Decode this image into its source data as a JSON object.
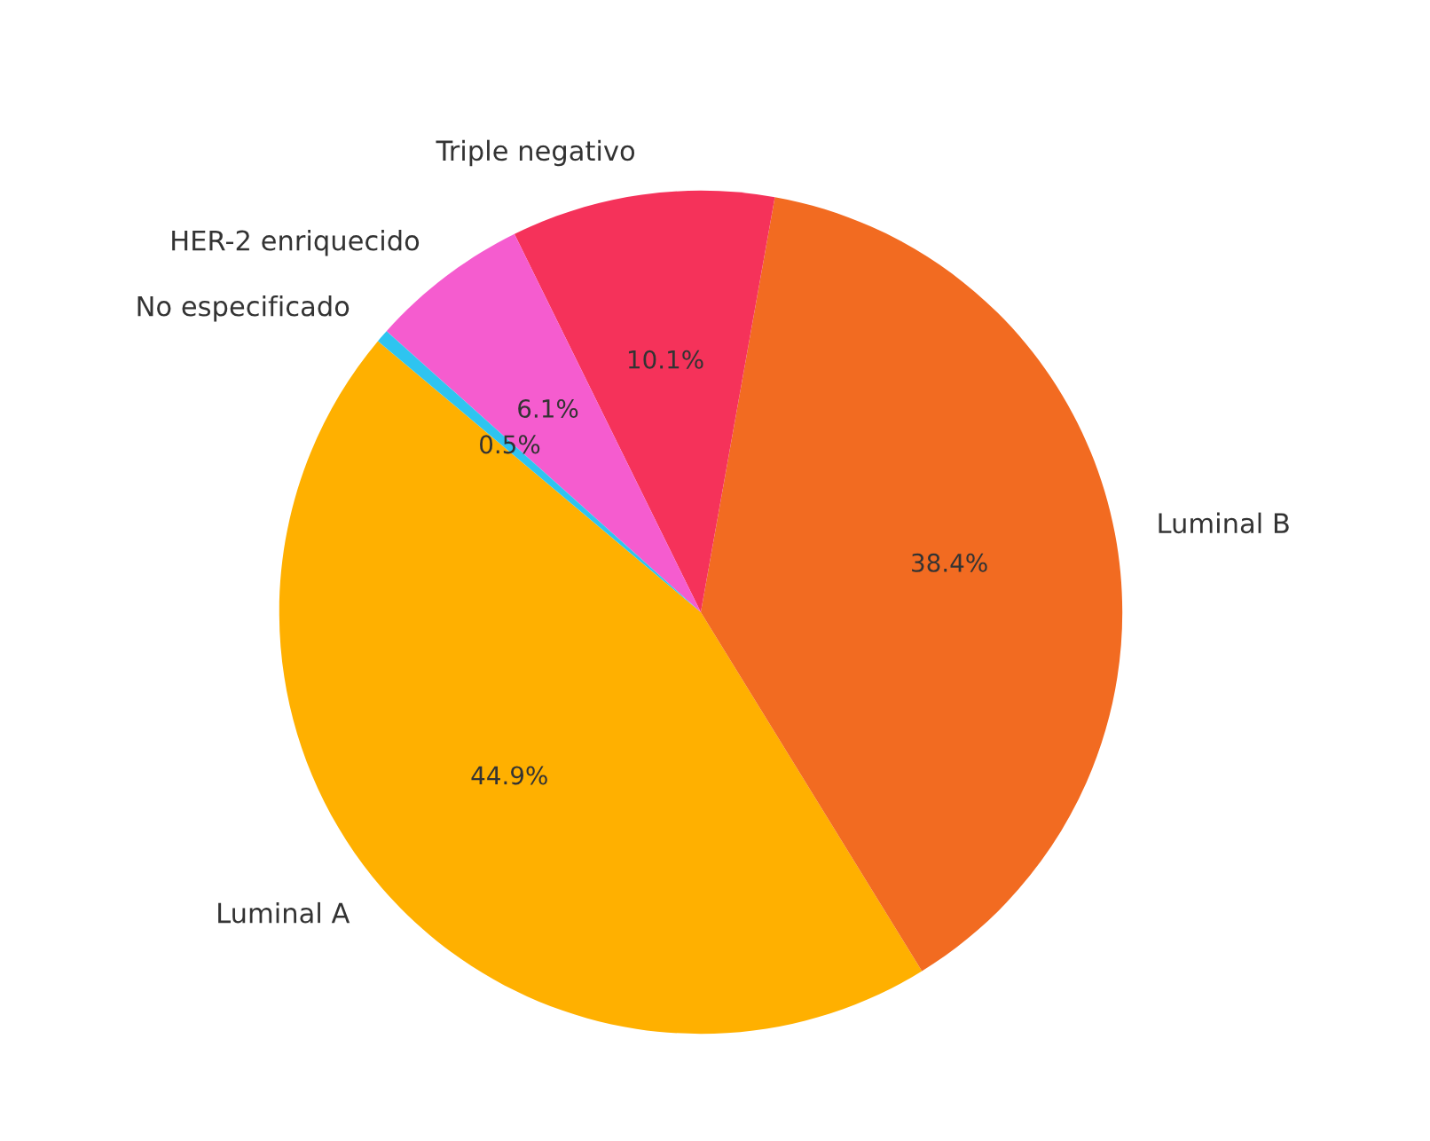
{
  "chart_data": {
    "type": "pie",
    "categories": [
      "Luminal A",
      "Luminal B",
      "Triple negativo",
      "HER-2 enriquecido",
      "No especificado"
    ],
    "values": [
      44.9,
      38.4,
      10.1,
      6.1,
      0.5
    ],
    "colors": [
      "#ffb000",
      "#f26b21",
      "#f5325a",
      "#f55ccf",
      "#2ec4f0"
    ],
    "value_labels": [
      "44.9%",
      "38.4%",
      "10.1%",
      "6.1%",
      "0.5%"
    ]
  }
}
